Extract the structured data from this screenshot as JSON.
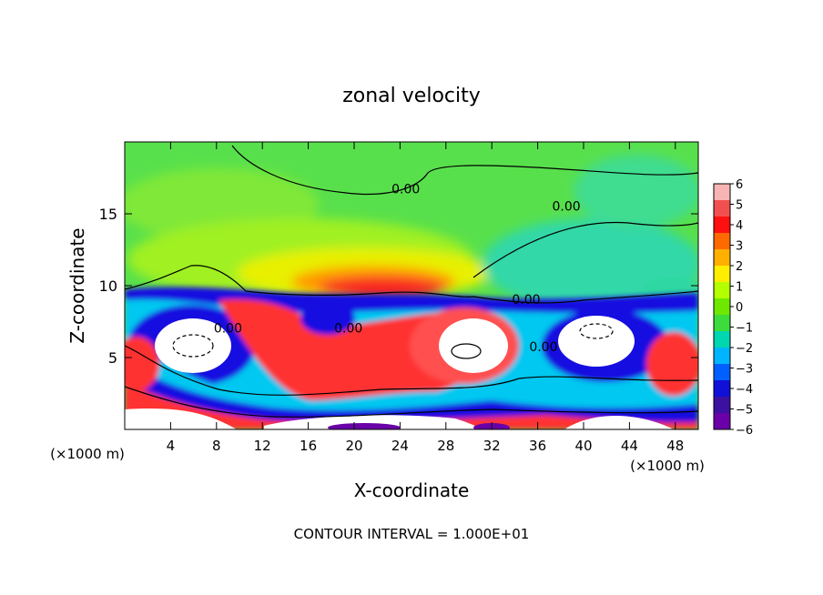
{
  "chart_data": {
    "type": "heatmap",
    "title": "zonal velocity",
    "xlabel": "X-coordinate",
    "ylabel": "Z-coordinate",
    "x_unit_label": "(×1000 m)",
    "xlim": [
      0,
      50
    ],
    "ylim": [
      0,
      20
    ],
    "x_ticks": [
      4,
      8,
      12,
      16,
      20,
      24,
      28,
      32,
      36,
      40,
      44,
      48
    ],
    "y_ticks": [
      5,
      10,
      15
    ],
    "contour_label": "0.00",
    "contour_labels": [
      {
        "x": 24.5,
        "y": 16.5,
        "text": "0.00"
      },
      {
        "x": 38.5,
        "y": 15.3,
        "text": "0.00"
      },
      {
        "x": 35,
        "y": 8.8,
        "text": "0.00"
      },
      {
        "x": 9,
        "y": 6.8,
        "text": "0.00"
      },
      {
        "x": 19.5,
        "y": 6.8,
        "text": "0.00"
      },
      {
        "x": 36.5,
        "y": 5.5,
        "text": "0.00"
      }
    ],
    "footer": "CONTOUR INTERVAL = 1.000E+01",
    "colorbar": {
      "min": -6,
      "max": 6,
      "tick_labels": [
        "6",
        "5",
        "4",
        "3",
        "2",
        "1",
        "0",
        "−1",
        "−2",
        "−3",
        "−4",
        "−5",
        "−6"
      ],
      "colors": [
        "#f7b4b4",
        "#f25050",
        "#ff1010",
        "#ff6a00",
        "#ffb000",
        "#ffee00",
        "#b4ff00",
        "#6ee800",
        "#3cdc3c",
        "#00d6b0",
        "#00b4ff",
        "#0060ff",
        "#1010d8",
        "#3c10a0",
        "#6a00a8"
      ]
    },
    "regions": [
      {
        "name": "upper-green",
        "value": 0.5,
        "color": "#58e04c"
      },
      {
        "name": "light-green",
        "value": 1.2,
        "color": "#a0f020"
      },
      {
        "name": "yellow-band",
        "value": 2,
        "color": "#f2f000"
      },
      {
        "name": "upper-jet",
        "value": 4.5,
        "color": "#f82020"
      },
      {
        "name": "teal-right",
        "value": -0.5,
        "color": "#2ed8a0"
      },
      {
        "name": "blue-band",
        "value": -4,
        "color": "#1810e0"
      },
      {
        "name": "cyan-band",
        "value": -2,
        "color": "#00c8f0"
      },
      {
        "name": "lower-red",
        "value": 5,
        "color": "#ff3030"
      },
      {
        "name": "white-saturated",
        "value": 6.5,
        "color": "#ffffff"
      },
      {
        "name": "purple-min",
        "value": -6,
        "color": "#6a00a8"
      }
    ]
  }
}
